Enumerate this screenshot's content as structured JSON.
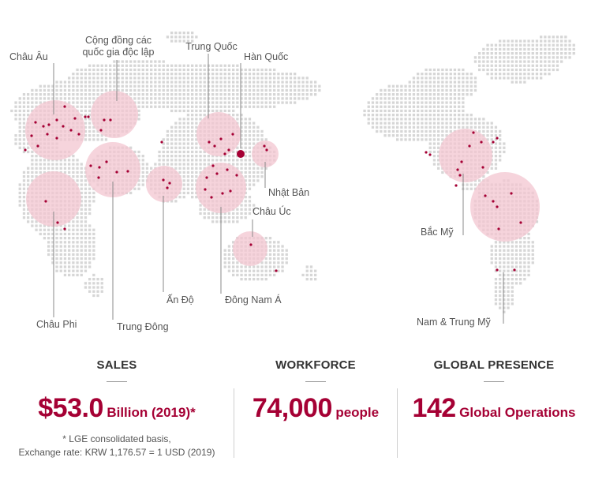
{
  "regions": {
    "europe": "Châu Âu",
    "cis": [
      "Cộng đồng các",
      "quốc gia độc lập"
    ],
    "china": "Trung Quốc",
    "korea": "Hàn Quốc",
    "japan": "Nhật Bản",
    "australia": "Châu Úc",
    "southeast_asia": "Đông Nam Á",
    "india": "Ấn Độ",
    "middle_east": "Trung Đông",
    "africa": "Châu Phi",
    "north_america": "Bắc Mỹ",
    "latin_america": "Nam & Trung Mỹ"
  },
  "colors": {
    "accent": "#a50034",
    "region_fill": "#f3c6d0",
    "map_dot": "#d6d6d6",
    "leader_line": "#888888"
  },
  "stats": {
    "sales": {
      "title": "SALES",
      "value": "$53.0",
      "unit": "Billion (2019)*",
      "note_line1": "* LGE consolidated basis,",
      "note_line2": "Exchange rate: KRW 1,176.57 = 1 USD (2019)"
    },
    "workforce": {
      "title": "WORKFORCE",
      "value": "74,000",
      "unit": "people"
    },
    "presence": {
      "title": "GLOBAL PRESENCE",
      "value": "142",
      "unit": "Global Operations"
    }
  }
}
